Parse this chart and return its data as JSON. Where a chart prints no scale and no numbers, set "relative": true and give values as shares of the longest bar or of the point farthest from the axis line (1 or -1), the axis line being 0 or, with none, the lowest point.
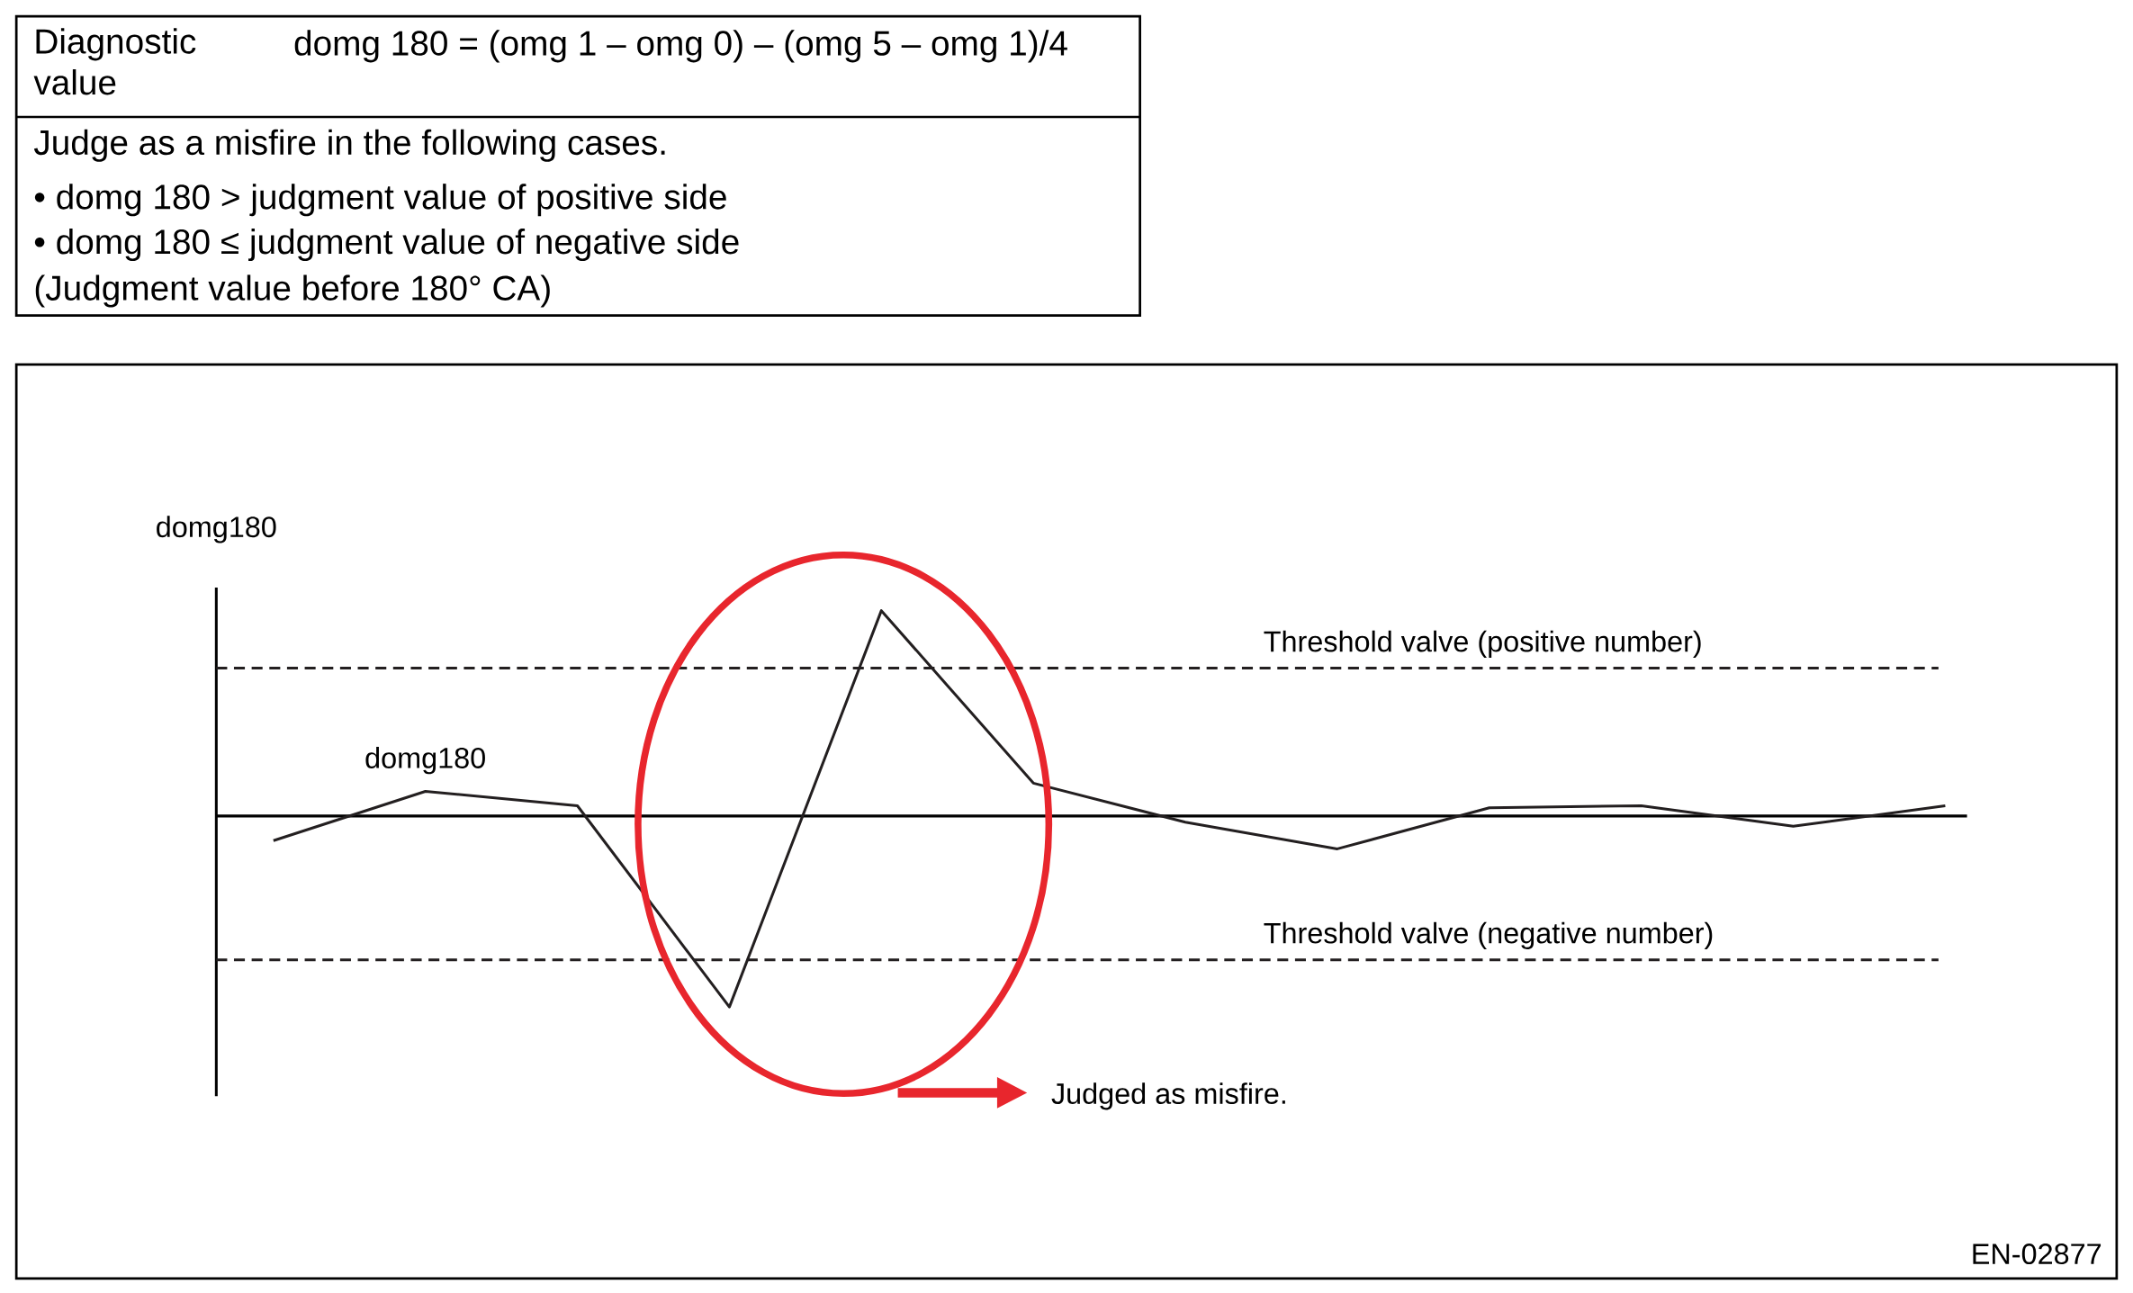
{
  "chart_data": [
    {
      "type": "other",
      "annotations": [
        "Diagnostic value",
        "domg 180 = (omg 1 – omg 0) – (omg 5 – omg 1)/4",
        "Judge as a misfire in the following cases.",
        "•  domg 180 > judgment value of positive side",
        "•  domg 180 ≤ judgment value of negative side",
        "(Judgment value before 180° CA)"
      ]
    },
    {
      "type": "line",
      "relative": true,
      "categories": [
        null,
        null,
        null,
        null,
        null,
        null,
        null,
        null,
        null,
        null,
        null,
        null
      ],
      "series": [
        {
          "name": "domg180",
          "color": "#231f20",
          "values": [
            -0.12,
            0.12,
            0.05,
            -0.93,
            1,
            0.16,
            -0.03,
            -0.16,
            0.04,
            0.05,
            -0.05,
            0.05
          ]
        }
      ],
      "ylabel": "domg180",
      "ref_lines": [
        {
          "axis": "y",
          "value": 0.72,
          "label": "Threshold valve (positive number)",
          "line_style": "dashed",
          "color": "#231f20"
        },
        {
          "axis": "y",
          "value": -0.7,
          "label": "Threshold valve (negative number)",
          "line_style": "dashed",
          "color": "#231f20"
        }
      ],
      "annotations": [
        "Judged as misfire.",
        "EN-02877"
      ]
    }
  ]
}
